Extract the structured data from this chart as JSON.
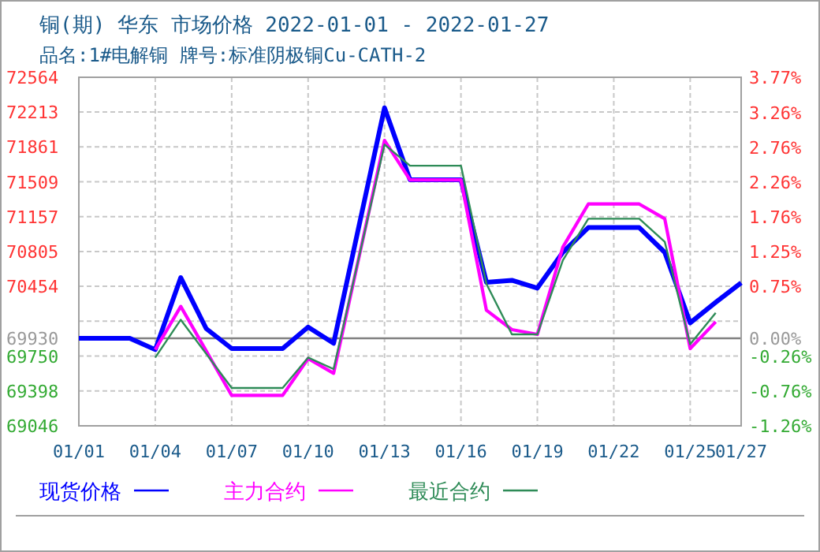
{
  "chart_data": {
    "type": "line",
    "title": "铜(期) 华东 市场价格 2022-01-01 - 2022-01-27",
    "subtitle": "品名:1#电解铜 牌号:标准阴极铜Cu-CATH-2",
    "xlim": [
      "--01-01",
      "--01-27"
    ],
    "xticks": [
      {
        "value": "--01-01",
        "label": "01/01"
      },
      {
        "value": "--01-04",
        "label": "01/04"
      },
      {
        "value": "--01-07",
        "label": "01/07"
      },
      {
        "value": "--01-10",
        "label": "01/10"
      },
      {
        "value": "--01-13",
        "label": "01/13"
      },
      {
        "value": "--01-16",
        "label": "01/16"
      },
      {
        "value": "--01-19",
        "label": "01/19"
      },
      {
        "value": "--01-22",
        "label": "01/22"
      },
      {
        "value": "--01-25",
        "label": "01/25"
      },
      {
        "value": "--01-27",
        "label": "01/27"
      }
    ],
    "ylim": [
      69046,
      72564
    ],
    "yticks": [
      72564,
      72213,
      71861,
      71509,
      71157,
      70805,
      70454,
      {
        "value": 70102,
        "label": null
      },
      69930,
      69750,
      69398,
      69046
    ],
    "y2lim": [
      -1.26,
      3.77
    ],
    "y2ticks": [
      {
        "value": 3.77,
        "label": "3.77%"
      },
      {
        "value": 3.26,
        "label": "3.26%"
      },
      {
        "value": 2.76,
        "label": "2.76%"
      },
      {
        "value": 2.26,
        "label": "2.26%"
      },
      {
        "value": 1.76,
        "label": "1.76%"
      },
      {
        "value": 1.25,
        "label": "1.25%"
      },
      {
        "value": 0.75,
        "label": "0.75%"
      },
      {
        "value": 0,
        "label": "0.00%"
      },
      {
        "value": -0.26,
        "label": "-0.26%"
      },
      {
        "value": -0.76,
        "label": "-0.76%"
      },
      {
        "value": -1.26,
        "label": "-1.26%"
      }
    ],
    "ref_lines": [
      {
        "axis": "y",
        "value": 69930,
        "color": "#808080"
      }
    ],
    "grid": true,
    "legend": "bottom",
    "marker": "none",
    "line_style": "solid",
    "series": [
      {
        "name": "现货价格",
        "color": "#0000ff",
        "x": [
          "--01-01",
          "--01-03",
          "--01-04",
          "--01-05",
          "--01-06",
          "--01-07",
          "--01-09",
          "--01-10",
          "--01-11",
          "--01-13",
          "--01-14",
          "--01-16",
          "--01-17",
          "--01-18",
          "--01-19",
          "--01-20",
          "--01-21",
          "--01-23",
          "--01-24",
          "--01-25",
          "--01-26",
          "--01-27"
        ],
        "values": [
          69930,
          69930,
          69815,
          70542,
          70027,
          69826,
          69826,
          70043,
          69879,
          72256,
          71529,
          71529,
          70494,
          70515,
          70436,
          70797,
          71047,
          71047,
          70797,
          70085,
          70292,
          70490
        ]
      },
      {
        "name": "主力合约",
        "color": "#ff00ff",
        "x": [
          "--01-04",
          "--01-05",
          "--01-07",
          "--01-09",
          "--01-10",
          "--01-11",
          "--01-13",
          "--01-14",
          "--01-16",
          "--01-17",
          "--01-18",
          "--01-19",
          "--01-20",
          "--01-21",
          "--01-23",
          "--01-24",
          "--01-25",
          "--01-26"
        ],
        "values": [
          69815,
          70251,
          69353,
          69353,
          69725,
          69576,
          71927,
          71529,
          71529,
          70213,
          70017,
          69969,
          70850,
          71285,
          71285,
          71136,
          69826,
          70096
        ]
      },
      {
        "name": "最近合约",
        "color": "#2e8b57",
        "x": [
          "--01-04",
          "--01-05",
          "--01-07",
          "--01-09",
          "--01-10",
          "--01-11",
          "--01-13",
          "--01-14",
          "--01-16",
          "--01-17",
          "--01-18",
          "--01-19",
          "--01-20",
          "--01-21",
          "--01-23",
          "--01-24",
          "--01-25",
          "--01-26"
        ],
        "values": [
          69735,
          70117,
          69428,
          69428,
          69735,
          69619,
          71885,
          71672,
          71672,
          70478,
          69969,
          69969,
          70717,
          71136,
          71136,
          70904,
          69869,
          70187
        ]
      }
    ]
  }
}
